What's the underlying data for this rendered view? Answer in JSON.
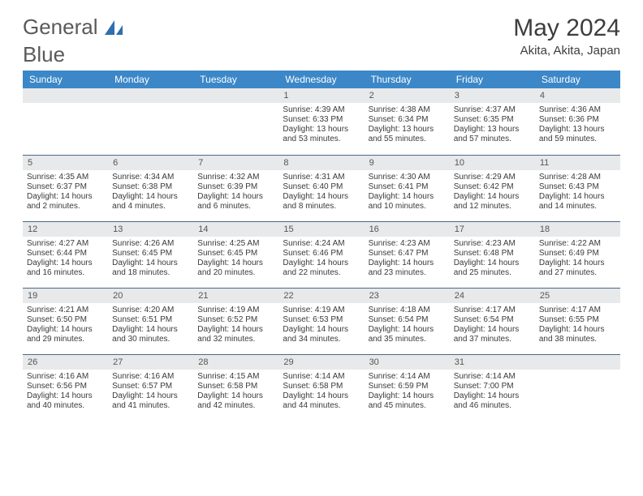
{
  "logo": {
    "text1": "General",
    "text2": "Blue"
  },
  "colors": {
    "header_bg": "#3b87c8",
    "header_text": "#ffffff",
    "daynum_bg": "#e8e9ea",
    "daynum_text": "#555555",
    "cell_border": "#4a6a8a",
    "title_text": "#3d3d3d",
    "body_text": "#3a3a3a",
    "logo_fill": "#2f6fb0"
  },
  "title": "May 2024",
  "location": "Akita, Akita, Japan",
  "weekdays": [
    "Sunday",
    "Monday",
    "Tuesday",
    "Wednesday",
    "Thursday",
    "Friday",
    "Saturday"
  ],
  "weeks": [
    [
      null,
      null,
      null,
      {
        "d": "1",
        "sr": "4:39 AM",
        "ss": "6:33 PM",
        "dl": "13 hours and 53 minutes."
      },
      {
        "d": "2",
        "sr": "4:38 AM",
        "ss": "6:34 PM",
        "dl": "13 hours and 55 minutes."
      },
      {
        "d": "3",
        "sr": "4:37 AM",
        "ss": "6:35 PM",
        "dl": "13 hours and 57 minutes."
      },
      {
        "d": "4",
        "sr": "4:36 AM",
        "ss": "6:36 PM",
        "dl": "13 hours and 59 minutes."
      }
    ],
    [
      {
        "d": "5",
        "sr": "4:35 AM",
        "ss": "6:37 PM",
        "dl": "14 hours and 2 minutes."
      },
      {
        "d": "6",
        "sr": "4:34 AM",
        "ss": "6:38 PM",
        "dl": "14 hours and 4 minutes."
      },
      {
        "d": "7",
        "sr": "4:32 AM",
        "ss": "6:39 PM",
        "dl": "14 hours and 6 minutes."
      },
      {
        "d": "8",
        "sr": "4:31 AM",
        "ss": "6:40 PM",
        "dl": "14 hours and 8 minutes."
      },
      {
        "d": "9",
        "sr": "4:30 AM",
        "ss": "6:41 PM",
        "dl": "14 hours and 10 minutes."
      },
      {
        "d": "10",
        "sr": "4:29 AM",
        "ss": "6:42 PM",
        "dl": "14 hours and 12 minutes."
      },
      {
        "d": "11",
        "sr": "4:28 AM",
        "ss": "6:43 PM",
        "dl": "14 hours and 14 minutes."
      }
    ],
    [
      {
        "d": "12",
        "sr": "4:27 AM",
        "ss": "6:44 PM",
        "dl": "14 hours and 16 minutes."
      },
      {
        "d": "13",
        "sr": "4:26 AM",
        "ss": "6:45 PM",
        "dl": "14 hours and 18 minutes."
      },
      {
        "d": "14",
        "sr": "4:25 AM",
        "ss": "6:45 PM",
        "dl": "14 hours and 20 minutes."
      },
      {
        "d": "15",
        "sr": "4:24 AM",
        "ss": "6:46 PM",
        "dl": "14 hours and 22 minutes."
      },
      {
        "d": "16",
        "sr": "4:23 AM",
        "ss": "6:47 PM",
        "dl": "14 hours and 23 minutes."
      },
      {
        "d": "17",
        "sr": "4:23 AM",
        "ss": "6:48 PM",
        "dl": "14 hours and 25 minutes."
      },
      {
        "d": "18",
        "sr": "4:22 AM",
        "ss": "6:49 PM",
        "dl": "14 hours and 27 minutes."
      }
    ],
    [
      {
        "d": "19",
        "sr": "4:21 AM",
        "ss": "6:50 PM",
        "dl": "14 hours and 29 minutes."
      },
      {
        "d": "20",
        "sr": "4:20 AM",
        "ss": "6:51 PM",
        "dl": "14 hours and 30 minutes."
      },
      {
        "d": "21",
        "sr": "4:19 AM",
        "ss": "6:52 PM",
        "dl": "14 hours and 32 minutes."
      },
      {
        "d": "22",
        "sr": "4:19 AM",
        "ss": "6:53 PM",
        "dl": "14 hours and 34 minutes."
      },
      {
        "d": "23",
        "sr": "4:18 AM",
        "ss": "6:54 PM",
        "dl": "14 hours and 35 minutes."
      },
      {
        "d": "24",
        "sr": "4:17 AM",
        "ss": "6:54 PM",
        "dl": "14 hours and 37 minutes."
      },
      {
        "d": "25",
        "sr": "4:17 AM",
        "ss": "6:55 PM",
        "dl": "14 hours and 38 minutes."
      }
    ],
    [
      {
        "d": "26",
        "sr": "4:16 AM",
        "ss": "6:56 PM",
        "dl": "14 hours and 40 minutes."
      },
      {
        "d": "27",
        "sr": "4:16 AM",
        "ss": "6:57 PM",
        "dl": "14 hours and 41 minutes."
      },
      {
        "d": "28",
        "sr": "4:15 AM",
        "ss": "6:58 PM",
        "dl": "14 hours and 42 minutes."
      },
      {
        "d": "29",
        "sr": "4:14 AM",
        "ss": "6:58 PM",
        "dl": "14 hours and 44 minutes."
      },
      {
        "d": "30",
        "sr": "4:14 AM",
        "ss": "6:59 PM",
        "dl": "14 hours and 45 minutes."
      },
      {
        "d": "31",
        "sr": "4:14 AM",
        "ss": "7:00 PM",
        "dl": "14 hours and 46 minutes."
      },
      null
    ]
  ],
  "labels": {
    "sunrise": "Sunrise: ",
    "sunset": "Sunset: ",
    "daylight": "Daylight: "
  }
}
